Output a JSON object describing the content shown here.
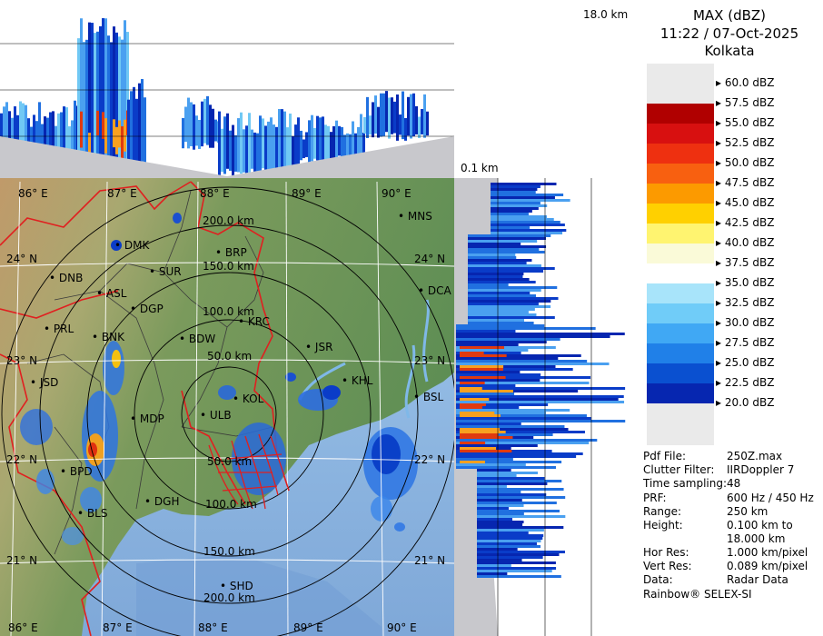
{
  "header": {
    "title": "MAX (dBZ)",
    "datetime": "11:22 / 07-Oct-2025",
    "station": "Kolkata"
  },
  "top_profile": {
    "height_label": "18.0 km"
  },
  "side_profile": {
    "base_label": "0.1 km"
  },
  "legend": {
    "levels": [
      {
        "label": "60.0 dBZ",
        "color": "#ffffff"
      },
      {
        "label": "57.5 dBZ",
        "color": "#ffffff"
      },
      {
        "label": "55.0 dBZ",
        "color": "#b00000"
      },
      {
        "label": "52.5 dBZ",
        "color": "#d81010"
      },
      {
        "label": "50.0 dBZ",
        "color": "#ee3010"
      },
      {
        "label": "47.5 dBZ",
        "color": "#f86010"
      },
      {
        "label": "45.0 dBZ",
        "color": "#fc9a00"
      },
      {
        "label": "42.5 dBZ",
        "color": "#ffd000"
      },
      {
        "label": "40.0 dBZ",
        "color": "#fff470"
      },
      {
        "label": "37.5 dBZ",
        "color": "#fafad8"
      },
      {
        "label": "35.0 dBZ",
        "color": "#ffffff"
      },
      {
        "label": "32.5 dBZ",
        "color": "#a8e4fa"
      },
      {
        "label": "30.0 dBZ",
        "color": "#70ccf8"
      },
      {
        "label": "27.5 dBZ",
        "color": "#40a8f4"
      },
      {
        "label": "25.0 dBZ",
        "color": "#2080e8"
      },
      {
        "label": "22.5 dBZ",
        "color": "#0a50d0"
      },
      {
        "label": "20.0 dBZ",
        "color": "#0626b0"
      }
    ],
    "bottom_color": "#0018a0"
  },
  "info": [
    {
      "key": "Pdf File:",
      "value": "250Z.max"
    },
    {
      "key": "Clutter Filter:",
      "value": "IIRDoppler 7"
    },
    {
      "key": "Time sampling:",
      "value": "48"
    },
    {
      "key": "PRF:",
      "value": "600 Hz / 450 Hz"
    },
    {
      "key": "Range:",
      "value": "250 km"
    },
    {
      "key": "Height:",
      "value": "0.100 km to"
    },
    {
      "key": "",
      "value": "18.000 km"
    },
    {
      "key": "Hor Res:",
      "value": "1.000 km/pixel"
    },
    {
      "key": "Vert Res:",
      "value": "0.089 km/pixel"
    },
    {
      "key": "Data:",
      "value": "Radar Data"
    }
  ],
  "footer": "Rainbow® SELEX-SI",
  "map": {
    "lon_labels": [
      "86° E",
      "87° E",
      "88° E",
      "89° E",
      "90° E"
    ],
    "bottom_lon_labels": [
      "86° E",
      "87° E",
      "88° E",
      "89° E",
      "90° E"
    ],
    "lat_labels_left": [
      "24° N",
      "23° N",
      "22° N",
      "21° N"
    ],
    "lat_labels_right": [
      "24° N",
      "23° N",
      "22° N",
      "21° N"
    ],
    "range_labels": [
      "200.0 km",
      "150.0 km",
      "100.0 km",
      "50.0 km",
      "50.0 km",
      "100.0 km",
      "150.0 km",
      "200.0 km"
    ],
    "cities": [
      {
        "code": "MNS"
      },
      {
        "code": "DMK"
      },
      {
        "code": "BRP"
      },
      {
        "code": "SUR"
      },
      {
        "code": "DNB"
      },
      {
        "code": "ASL"
      },
      {
        "code": "DGP"
      },
      {
        "code": "DCA"
      },
      {
        "code": "KRC"
      },
      {
        "code": "PRL"
      },
      {
        "code": "BNK"
      },
      {
        "code": "BDW"
      },
      {
        "code": "JSR"
      },
      {
        "code": "KHL"
      },
      {
        "code": "JSD"
      },
      {
        "code": "KOL"
      },
      {
        "code": "BSL"
      },
      {
        "code": "MDP"
      },
      {
        "code": "ULB"
      },
      {
        "code": "BPD"
      },
      {
        "code": "DGH"
      },
      {
        "code": "BLS"
      },
      {
        "code": "SHD"
      }
    ]
  }
}
